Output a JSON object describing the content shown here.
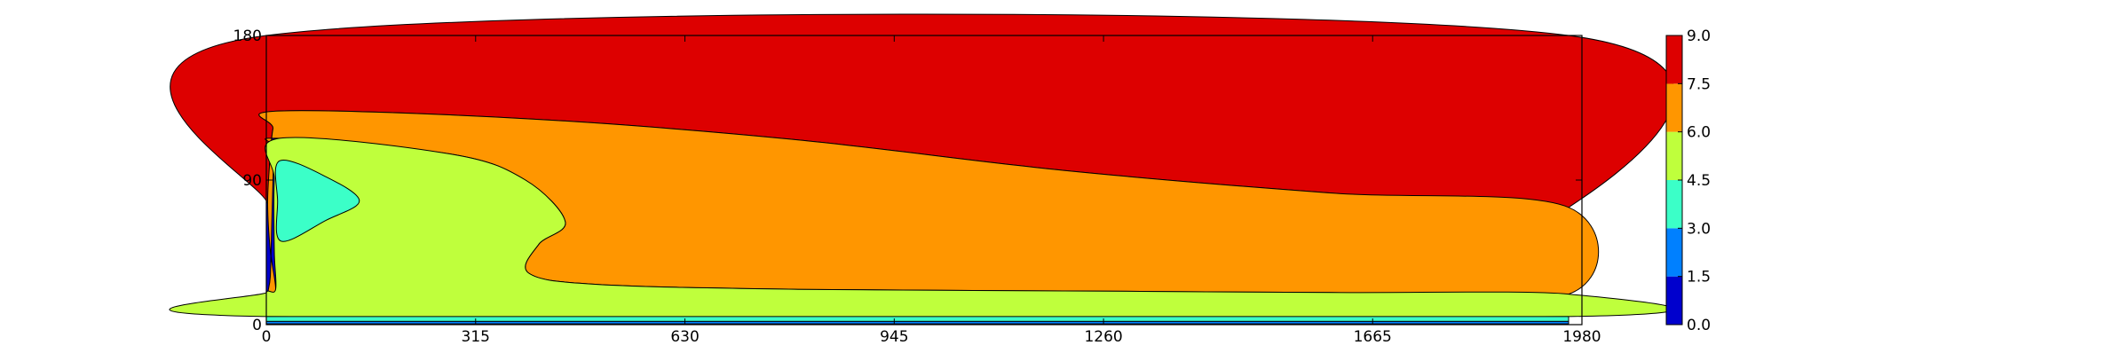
{
  "chart_data": {
    "type": "contourf",
    "title": "",
    "xlabel": "",
    "ylabel": "",
    "xlim": [
      0,
      1980
    ],
    "ylim": [
      0,
      180
    ],
    "x_ticks": [
      "0",
      "315",
      "630",
      "945",
      "1260",
      "1665",
      "1980"
    ],
    "y_ticks": [
      "0",
      "90",
      "180"
    ],
    "colorbar": {
      "levels": [
        "0.0",
        "1.5",
        "3.0",
        "4.5",
        "6.0",
        "7.5",
        "9.0"
      ],
      "colors": [
        "#0000cd",
        "#0080ff",
        "#3bffc8",
        "#bfff3c",
        "#ff9600",
        "#dd0000"
      ]
    },
    "regions": [
      {
        "level_range": [
          7.5,
          9.0
        ],
        "color": "#dd0000",
        "boundary": [
          [
            0,
            180
          ],
          [
            1960,
            180
          ],
          [
            1960,
            73
          ],
          [
            1600,
            82
          ],
          [
            1200,
            96
          ],
          [
            800,
            115
          ],
          [
            400,
            128
          ],
          [
            20,
            133
          ],
          [
            10,
            122
          ],
          [
            5,
            100
          ],
          [
            2,
            75
          ]
        ]
      },
      {
        "level_range": [
          6.0,
          7.5
        ],
        "color": "#ff9600",
        "boundary": [
          [
            20,
            133
          ],
          [
            400,
            128
          ],
          [
            800,
            115
          ],
          [
            1200,
            96
          ],
          [
            1600,
            82
          ],
          [
            1960,
            73
          ],
          [
            1960,
            19
          ],
          [
            1600,
            20
          ],
          [
            1200,
            21
          ],
          [
            800,
            22
          ],
          [
            500,
            25
          ],
          [
            395,
            32
          ],
          [
            410,
            50
          ],
          [
            450,
            64
          ],
          [
            390,
            90
          ],
          [
            280,
            106
          ],
          [
            20,
            116
          ],
          [
            12,
            110
          ],
          [
            10,
            90
          ],
          [
            8,
            60
          ],
          [
            6,
            30
          ],
          [
            3,
            20
          ],
          [
            14,
            22
          ],
          [
            6,
            46
          ],
          [
            2,
            75
          ],
          [
            5,
            100
          ],
          [
            10,
            122
          ]
        ]
      },
      {
        "level_range": [
          4.5,
          6.0
        ],
        "color": "#bfff3c",
        "boundary": [
          [
            20,
            116
          ],
          [
            280,
            106
          ],
          [
            390,
            90
          ],
          [
            450,
            64
          ],
          [
            410,
            50
          ],
          [
            395,
            32
          ],
          [
            500,
            25
          ],
          [
            800,
            22
          ],
          [
            1200,
            21
          ],
          [
            1600,
            20
          ],
          [
            1960,
            19
          ],
          [
            1960,
            5
          ],
          [
            0,
            5
          ],
          [
            0,
            20
          ],
          [
            14,
            22
          ],
          [
            12,
            46
          ],
          [
            12,
            90
          ]
        ]
      },
      {
        "level_range": [
          3.0,
          4.5
        ],
        "color": "#3bffc8",
        "boundary": [
          [
            20,
            102
          ],
          [
            90,
            92
          ],
          [
            140,
            77
          ],
          [
            90,
            65
          ],
          [
            22,
            52
          ],
          [
            17,
            77
          ]
        ]
      },
      {
        "level_range": [
          3.0,
          4.5
        ],
        "color": "#3bffc8",
        "boundary": [
          [
            0,
            5
          ],
          [
            1960,
            5
          ],
          [
            1960,
            2
          ],
          [
            0,
            2
          ]
        ]
      },
      {
        "level_range": [
          1.5,
          3.0
        ],
        "color": "#0080ff",
        "boundary": [
          [
            0,
            2
          ],
          [
            1960,
            2
          ],
          [
            1960,
            0.5
          ],
          [
            0,
            0.5
          ]
        ]
      }
    ]
  }
}
